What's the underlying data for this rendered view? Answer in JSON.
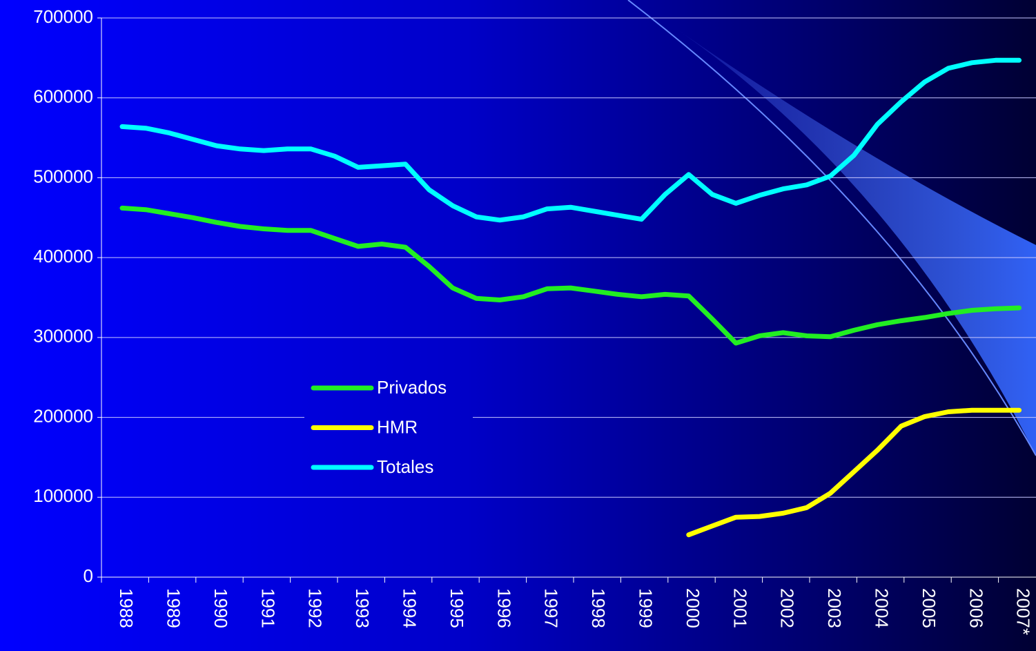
{
  "chart_data": {
    "type": "line",
    "categories": [
      "1988",
      null,
      "1989",
      null,
      "1990",
      null,
      "1991",
      null,
      "1992",
      null,
      "1993",
      null,
      "1994",
      null,
      "1995",
      null,
      "1996",
      null,
      "1997",
      null,
      "1998",
      null,
      "1999",
      null,
      "2000",
      null,
      "2001",
      null,
      "2002",
      null,
      "2003",
      null,
      "2004",
      null,
      "2005",
      null,
      "2006",
      null,
      "2007*"
    ],
    "series": [
      {
        "name": "Privados",
        "color": "#22ee22",
        "values": [
          462000,
          460000,
          455000,
          450000,
          444000,
          439000,
          436000,
          434000,
          434000,
          424000,
          414000,
          417000,
          413000,
          389000,
          362000,
          349000,
          347000,
          351000,
          361000,
          362000,
          358000,
          354000,
          351000,
          354000,
          352000,
          323000,
          293000,
          302000,
          306000,
          302000,
          301000,
          309000,
          316000,
          321000,
          325000,
          330000,
          334000,
          336000,
          337000
        ]
      },
      {
        "name": "HMR",
        "color": "#ffff00",
        "values": [
          null,
          null,
          null,
          null,
          null,
          null,
          null,
          null,
          null,
          null,
          null,
          null,
          null,
          null,
          null,
          null,
          null,
          null,
          null,
          null,
          null,
          null,
          null,
          null,
          53000,
          64000,
          75000,
          76000,
          80000,
          87000,
          105000,
          132000,
          159000,
          189000,
          201000,
          207000,
          209000,
          209000,
          209000
        ]
      },
      {
        "name": "Totales",
        "color": "#00ffff",
        "values": [
          564000,
          562000,
          556000,
          548000,
          540000,
          536000,
          534000,
          536000,
          536000,
          527000,
          513000,
          515000,
          517000,
          485000,
          465000,
          451000,
          447000,
          451000,
          461000,
          463000,
          458000,
          453000,
          448000,
          479000,
          504000,
          479000,
          468000,
          478000,
          486000,
          491000,
          502000,
          528000,
          567000,
          595000,
          620000,
          637000,
          644000,
          647000,
          647000
        ]
      }
    ],
    "ylim": [
      0,
      700000
    ],
    "yticks": [
      0,
      100000,
      200000,
      300000,
      400000,
      500000,
      600000,
      700000
    ],
    "grid": true
  }
}
